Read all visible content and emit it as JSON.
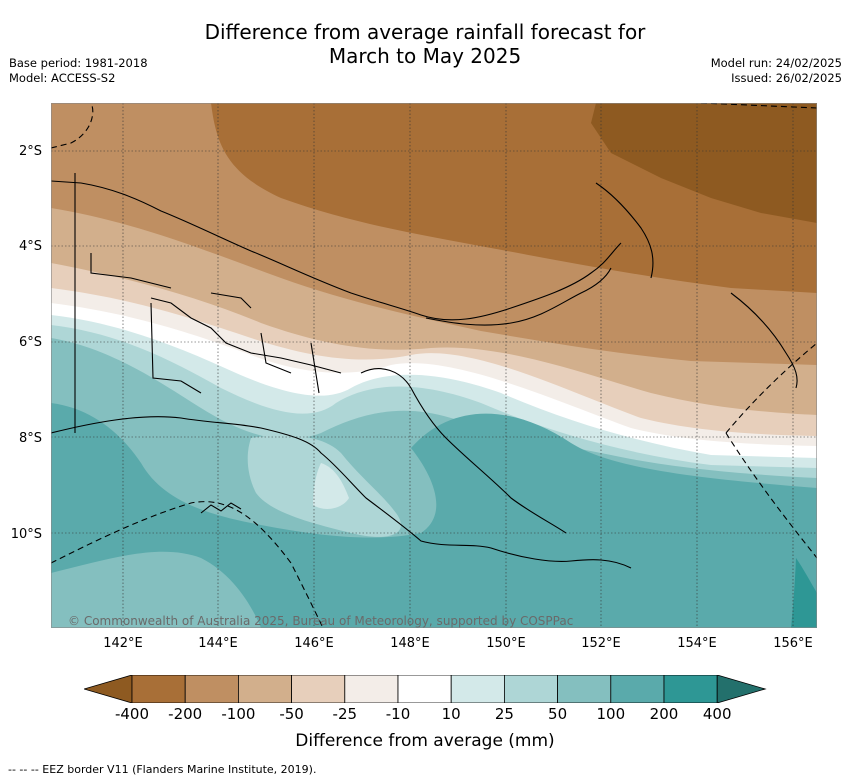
{
  "title": {
    "line1": "Difference from average rainfall forecast for",
    "line2": "March to May 2025"
  },
  "meta_left": {
    "base_period": "Base period: 1981-2018",
    "model": "Model: ACCESS-S2"
  },
  "meta_right": {
    "model_run": "Model run: 24/02/2025",
    "issued": "Issued: 26/02/2025"
  },
  "map": {
    "lat_labels": [
      "2°S",
      "4°S",
      "6°S",
      "8°S",
      "10°S"
    ],
    "lon_labels": [
      "142°E",
      "144°E",
      "146°E",
      "148°E",
      "150°E",
      "152°E",
      "154°E",
      "156°E"
    ],
    "copyright": "© Commonwealth of Australia 2025, Bureau of Meteorology, supported by COSPPac"
  },
  "colorbar": {
    "tick_labels": [
      "-400",
      "-200",
      "-100",
      "-50",
      "-25",
      "-10",
      "10",
      "25",
      "50",
      "100",
      "200",
      "400"
    ],
    "label": "Difference from average (mm)",
    "colors": [
      "#8e5a21",
      "#a86f37",
      "#bf8f62",
      "#d2af8c",
      "#e7cfbb",
      "#f3ede8",
      "#ffffff",
      "#d3e9e9",
      "#aed6d6",
      "#84bfbf",
      "#5aaaab",
      "#2e9795",
      "#23706c"
    ]
  },
  "footer": "--  --  -- EEZ border V11 (Flanders Marine Institute, 2019)."
}
